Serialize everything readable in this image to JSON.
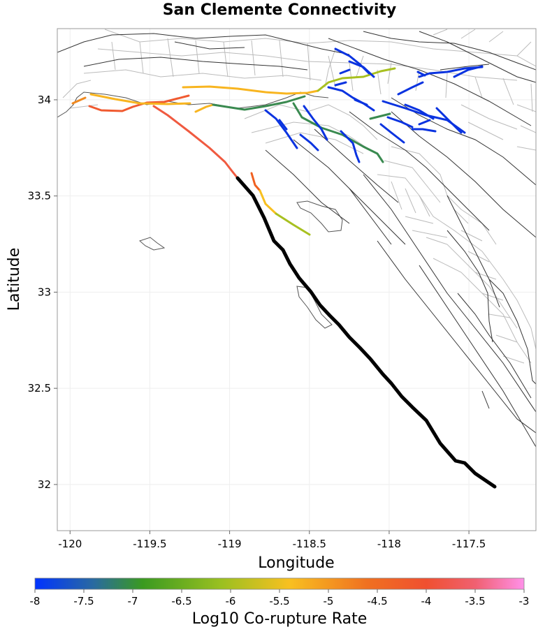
{
  "title": "San Clemente Connectivity",
  "map": {
    "xlabel": "Longitude",
    "ylabel": "Latitude",
    "xlim": [
      -120.08,
      -117.08
    ],
    "ylim": [
      31.76,
      34.37
    ],
    "xticks": [
      {
        "value": -120,
        "label": "-120"
      },
      {
        "value": -119.5,
        "label": "-119.5"
      },
      {
        "value": -119,
        "label": "-119"
      },
      {
        "value": -118.5,
        "label": "-118.5"
      },
      {
        "value": -118,
        "label": "-118"
      },
      {
        "value": -117.5,
        "label": "-117.5"
      }
    ],
    "yticks": [
      {
        "value": 32,
        "label": "32"
      },
      {
        "value": 32.5,
        "label": "32.5"
      },
      {
        "value": 33,
        "label": "33"
      },
      {
        "value": 33.5,
        "label": "33.5"
      },
      {
        "value": 34,
        "label": "34"
      }
    ]
  },
  "colorbar": {
    "label": "Log10 Co-rupture Rate",
    "min": -8,
    "max": -3,
    "ticks": [
      {
        "value": -8,
        "label": "-8"
      },
      {
        "value": -7.5,
        "label": "-7.5"
      },
      {
        "value": -7,
        "label": "-7"
      },
      {
        "value": -6.5,
        "label": "-6.5"
      },
      {
        "value": -6,
        "label": "-6"
      },
      {
        "value": -5.5,
        "label": "-5.5"
      },
      {
        "value": -5,
        "label": "-5"
      },
      {
        "value": -4.5,
        "label": "-4.5"
      },
      {
        "value": -4,
        "label": "-4"
      },
      {
        "value": -3.5,
        "label": "-3.5"
      },
      {
        "value": -3,
        "label": "-3"
      }
    ],
    "colors": [
      "#0033ff",
      "#2a6aa0",
      "#3a9a20",
      "#9ac020",
      "#f8c020",
      "#f07020",
      "#f05030",
      "#f06070",
      "#ff90e8"
    ]
  },
  "target_fault_color": "#000000",
  "coastline_color": "#555555",
  "fault_color": "#333333",
  "subsection_color": "#bbbbbb"
}
